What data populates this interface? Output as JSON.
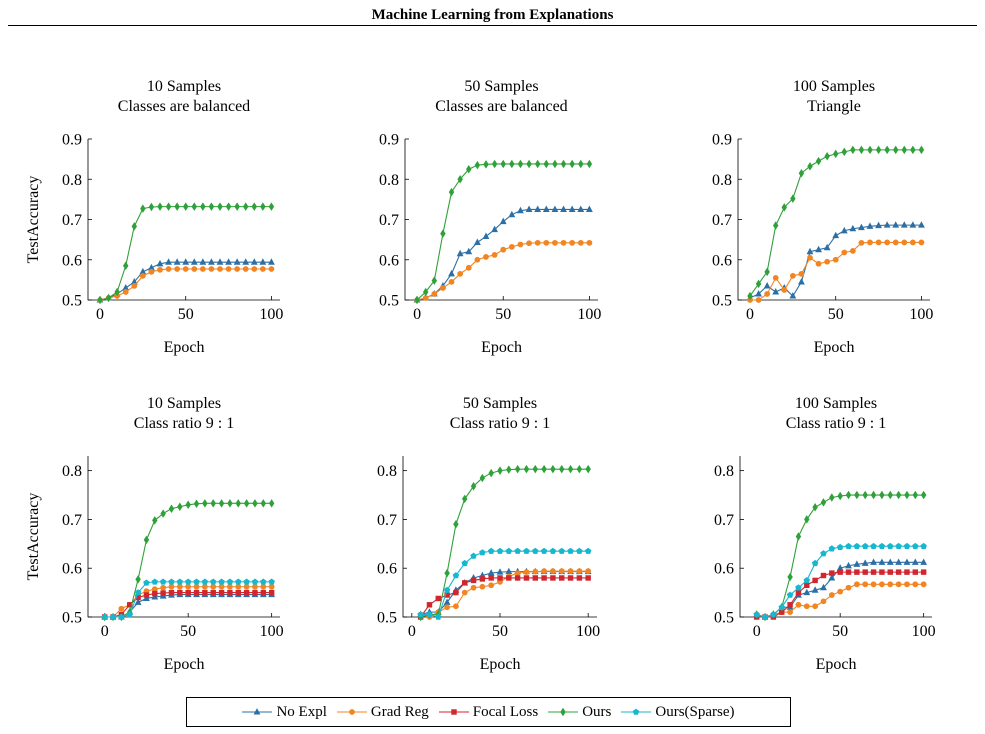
{
  "header": {
    "title": "Machine Learning from Explanations"
  },
  "legend": {
    "items": [
      {
        "label": "No Expl",
        "color": "#2c6fa6",
        "marker": "triangle"
      },
      {
        "label": "Grad Reg",
        "color": "#f28522",
        "marker": "circle"
      },
      {
        "label": "Focal Loss",
        "color": "#d1262e",
        "marker": "square"
      },
      {
        "label": "Ours",
        "color": "#2fa13a",
        "marker": "diamond"
      },
      {
        "label": "Ours(Sparse)",
        "color": "#17b7cf",
        "marker": "pentagon"
      }
    ]
  },
  "chart_data": [
    {
      "type": "line",
      "title": [
        "10 Samples",
        "Classes are balanced"
      ],
      "xlabel": "Epoch",
      "ylabel": "TestAccuracy",
      "xlim": [
        -7,
        105
      ],
      "ylim": [
        0.5,
        0.9
      ],
      "xticks": [
        0,
        50,
        100
      ],
      "yticks": [
        0.5,
        0.6,
        0.7,
        0.8,
        0.9
      ],
      "x": [
        0,
        5,
        10,
        15,
        20,
        25,
        30,
        35,
        40,
        45,
        50,
        55,
        60,
        65,
        70,
        75,
        80,
        85,
        90,
        95,
        100
      ],
      "series": [
        {
          "name": "No Expl",
          "values": [
            0.5,
            0.505,
            0.515,
            0.53,
            0.545,
            0.57,
            0.58,
            0.59,
            0.594,
            0.594,
            0.594,
            0.594,
            0.594,
            0.594,
            0.594,
            0.594,
            0.594,
            0.594,
            0.594,
            0.594,
            0.594
          ]
        },
        {
          "name": "Grad Reg",
          "values": [
            0.5,
            0.505,
            0.51,
            0.52,
            0.535,
            0.56,
            0.57,
            0.575,
            0.577,
            0.577,
            0.577,
            0.577,
            0.577,
            0.577,
            0.577,
            0.577,
            0.577,
            0.577,
            0.577,
            0.577,
            0.577
          ]
        },
        {
          "name": "Ours",
          "values": [
            0.5,
            0.505,
            0.52,
            0.585,
            0.683,
            0.727,
            0.731,
            0.732,
            0.732,
            0.732,
            0.732,
            0.732,
            0.732,
            0.732,
            0.732,
            0.732,
            0.732,
            0.732,
            0.732,
            0.732,
            0.732
          ]
        }
      ]
    },
    {
      "type": "line",
      "title": [
        "50 Samples",
        "Classes are balanced"
      ],
      "xlabel": "Epoch",
      "ylabel": "",
      "xlim": [
        -7,
        105
      ],
      "ylim": [
        0.5,
        0.9
      ],
      "xticks": [
        0,
        50,
        100
      ],
      "yticks": [
        0.5,
        0.6,
        0.7,
        0.8,
        0.9
      ],
      "x": [
        0,
        5,
        10,
        15,
        20,
        25,
        30,
        35,
        40,
        45,
        50,
        55,
        60,
        65,
        70,
        75,
        80,
        85,
        90,
        95,
        100
      ],
      "series": [
        {
          "name": "No Expl",
          "values": [
            0.5,
            0.505,
            0.515,
            0.535,
            0.565,
            0.615,
            0.62,
            0.643,
            0.658,
            0.675,
            0.695,
            0.712,
            0.722,
            0.725,
            0.725,
            0.725,
            0.725,
            0.725,
            0.725,
            0.725,
            0.725
          ]
        },
        {
          "name": "Grad Reg",
          "values": [
            0.5,
            0.505,
            0.515,
            0.53,
            0.545,
            0.565,
            0.58,
            0.6,
            0.607,
            0.612,
            0.625,
            0.632,
            0.638,
            0.641,
            0.642,
            0.642,
            0.642,
            0.642,
            0.642,
            0.642,
            0.642
          ]
        },
        {
          "name": "Ours",
          "values": [
            0.5,
            0.52,
            0.548,
            0.665,
            0.768,
            0.8,
            0.825,
            0.835,
            0.837,
            0.838,
            0.838,
            0.838,
            0.838,
            0.838,
            0.838,
            0.838,
            0.838,
            0.838,
            0.838,
            0.838,
            0.838
          ]
        }
      ]
    },
    {
      "type": "line",
      "title": [
        "100 Samples",
        "Triangle"
      ],
      "xlabel": "Epoch",
      "ylabel": "",
      "xlim": [
        -7,
        105
      ],
      "ylim": [
        0.5,
        0.9
      ],
      "xticks": [
        0,
        50,
        100
      ],
      "yticks": [
        0.5,
        0.6,
        0.7,
        0.8,
        0.9
      ],
      "x": [
        0,
        5,
        10,
        15,
        20,
        25,
        30,
        35,
        40,
        45,
        50,
        55,
        60,
        65,
        70,
        75,
        80,
        85,
        90,
        95,
        100
      ],
      "series": [
        {
          "name": "No Expl",
          "values": [
            0.505,
            0.515,
            0.535,
            0.52,
            0.53,
            0.51,
            0.545,
            0.62,
            0.625,
            0.63,
            0.66,
            0.672,
            0.677,
            0.68,
            0.683,
            0.685,
            0.686,
            0.686,
            0.686,
            0.686,
            0.686
          ]
        },
        {
          "name": "Grad Reg",
          "values": [
            0.5,
            0.5,
            0.515,
            0.555,
            0.525,
            0.56,
            0.565,
            0.605,
            0.59,
            0.595,
            0.6,
            0.618,
            0.622,
            0.642,
            0.643,
            0.643,
            0.643,
            0.643,
            0.643,
            0.643,
            0.643
          ]
        },
        {
          "name": "Ours",
          "values": [
            0.51,
            0.54,
            0.57,
            0.685,
            0.73,
            0.752,
            0.815,
            0.832,
            0.845,
            0.857,
            0.863,
            0.868,
            0.873,
            0.873,
            0.873,
            0.873,
            0.873,
            0.873,
            0.873,
            0.873,
            0.873
          ]
        }
      ]
    },
    {
      "type": "line",
      "title": [
        "10 Samples",
        "Class ratio 9 : 1"
      ],
      "xlabel": "Epoch",
      "ylabel": "TestAccuracy",
      "xlim": [
        -10,
        105
      ],
      "ylim": [
        0.5,
        0.83
      ],
      "xticks": [
        0,
        50,
        100
      ],
      "yticks": [
        0.5,
        0.6,
        0.7,
        0.8
      ],
      "x": [
        0,
        5,
        10,
        15,
        20,
        25,
        30,
        35,
        40,
        45,
        50,
        55,
        60,
        65,
        70,
        75,
        80,
        85,
        90,
        95,
        100
      ],
      "series": [
        {
          "name": "No Expl",
          "values": [
            0.5,
            0.5,
            0.5,
            0.51,
            0.53,
            0.538,
            0.541,
            0.543,
            0.545,
            0.546,
            0.546,
            0.546,
            0.546,
            0.546,
            0.546,
            0.546,
            0.546,
            0.546,
            0.546,
            0.546,
            0.546
          ]
        },
        {
          "name": "Grad Reg",
          "values": [
            0.5,
            0.5,
            0.517,
            0.525,
            0.545,
            0.553,
            0.557,
            0.56,
            0.562,
            0.562,
            0.562,
            0.562,
            0.562,
            0.562,
            0.562,
            0.562,
            0.562,
            0.562,
            0.562,
            0.562,
            0.562
          ]
        },
        {
          "name": "Focal Loss",
          "values": [
            0.5,
            0.5,
            0.505,
            0.525,
            0.54,
            0.545,
            0.548,
            0.549,
            0.55,
            0.55,
            0.55,
            0.55,
            0.55,
            0.55,
            0.55,
            0.55,
            0.55,
            0.55,
            0.55,
            0.55,
            0.55
          ]
        },
        {
          "name": "Ours",
          "values": [
            0.5,
            0.5,
            0.5,
            0.51,
            0.577,
            0.658,
            0.698,
            0.712,
            0.722,
            0.726,
            0.73,
            0.732,
            0.733,
            0.733,
            0.733,
            0.733,
            0.733,
            0.733,
            0.733,
            0.733,
            0.733
          ]
        },
        {
          "name": "Ours(Sparse)",
          "values": [
            0.5,
            0.5,
            0.5,
            0.505,
            0.55,
            0.57,
            0.572,
            0.572,
            0.572,
            0.572,
            0.572,
            0.572,
            0.572,
            0.572,
            0.572,
            0.572,
            0.572,
            0.572,
            0.572,
            0.572,
            0.572
          ]
        }
      ]
    },
    {
      "type": "line",
      "title": [
        "50 Samples",
        "Class ratio 9 : 1"
      ],
      "xlabel": "Epoch",
      "ylabel": "",
      "xlim": [
        -5,
        105
      ],
      "ylim": [
        0.5,
        0.83
      ],
      "xticks": [
        0,
        50,
        100
      ],
      "yticks": [
        0.5,
        0.6,
        0.7,
        0.8
      ],
      "x": [
        5,
        10,
        15,
        20,
        25,
        30,
        35,
        40,
        45,
        50,
        55,
        60,
        65,
        70,
        75,
        80,
        85,
        90,
        95,
        100
      ],
      "series": [
        {
          "name": "No Expl",
          "values": [
            0.505,
            0.51,
            0.51,
            0.53,
            0.555,
            0.57,
            0.58,
            0.585,
            0.59,
            0.592,
            0.593,
            0.593,
            0.593,
            0.593,
            0.593,
            0.593,
            0.593,
            0.593,
            0.593,
            0.593
          ]
        },
        {
          "name": "Grad Reg",
          "values": [
            0.505,
            0.5,
            0.51,
            0.52,
            0.522,
            0.55,
            0.56,
            0.562,
            0.565,
            0.572,
            0.583,
            0.59,
            0.592,
            0.593,
            0.594,
            0.594,
            0.594,
            0.594,
            0.594,
            0.594
          ]
        },
        {
          "name": "Focal Loss",
          "values": [
            0.5,
            0.525,
            0.538,
            0.545,
            0.55,
            0.57,
            0.575,
            0.578,
            0.58,
            0.58,
            0.58,
            0.58,
            0.58,
            0.58,
            0.58,
            0.58,
            0.58,
            0.58,
            0.58,
            0.58
          ]
        },
        {
          "name": "Ours",
          "values": [
            0.5,
            0.505,
            0.505,
            0.59,
            0.69,
            0.742,
            0.768,
            0.785,
            0.795,
            0.8,
            0.802,
            0.803,
            0.803,
            0.803,
            0.803,
            0.803,
            0.803,
            0.803,
            0.803,
            0.803
          ]
        },
        {
          "name": "Ours(Sparse)",
          "values": [
            0.505,
            0.505,
            0.5,
            0.555,
            0.585,
            0.61,
            0.625,
            0.632,
            0.635,
            0.635,
            0.635,
            0.635,
            0.635,
            0.635,
            0.635,
            0.635,
            0.635,
            0.635,
            0.635,
            0.635
          ]
        }
      ]
    },
    {
      "type": "line",
      "title": [
        "100 Samples",
        "Class ratio 9 : 1"
      ],
      "xlabel": "Epoch",
      "ylabel": "",
      "xlim": [
        -10,
        105
      ],
      "ylim": [
        0.5,
        0.83
      ],
      "xticks": [
        0,
        50,
        100
      ],
      "yticks": [
        0.5,
        0.6,
        0.7,
        0.8
      ],
      "x": [
        0,
        5,
        10,
        15,
        20,
        25,
        30,
        35,
        40,
        45,
        50,
        55,
        60,
        65,
        70,
        75,
        80,
        85,
        90,
        95,
        100
      ],
      "series": [
        {
          "name": "No Expl",
          "values": [
            0.505,
            0.5,
            0.505,
            0.52,
            0.52,
            0.545,
            0.55,
            0.555,
            0.56,
            0.58,
            0.6,
            0.605,
            0.608,
            0.61,
            0.612,
            0.612,
            0.612,
            0.612,
            0.612,
            0.612,
            0.612
          ]
        },
        {
          "name": "Grad Reg",
          "values": [
            0.505,
            0.5,
            0.505,
            0.51,
            0.51,
            0.525,
            0.522,
            0.522,
            0.532,
            0.545,
            0.552,
            0.56,
            0.567,
            0.567,
            0.567,
            0.567,
            0.567,
            0.567,
            0.567,
            0.567,
            0.567
          ]
        },
        {
          "name": "Focal Loss",
          "values": [
            0.5,
            0.5,
            0.5,
            0.51,
            0.525,
            0.55,
            0.565,
            0.575,
            0.585,
            0.59,
            0.592,
            0.592,
            0.592,
            0.592,
            0.592,
            0.592,
            0.592,
            0.592,
            0.592,
            0.592,
            0.592
          ]
        },
        {
          "name": "Ours",
          "values": [
            0.505,
            0.5,
            0.505,
            0.52,
            0.582,
            0.665,
            0.7,
            0.725,
            0.735,
            0.745,
            0.748,
            0.75,
            0.75,
            0.75,
            0.75,
            0.75,
            0.75,
            0.75,
            0.75,
            0.75,
            0.75
          ]
        },
        {
          "name": "Ours(Sparse)",
          "values": [
            0.505,
            0.5,
            0.505,
            0.52,
            0.545,
            0.56,
            0.575,
            0.61,
            0.63,
            0.64,
            0.643,
            0.645,
            0.645,
            0.645,
            0.645,
            0.645,
            0.645,
            0.645,
            0.645,
            0.645,
            0.645
          ]
        }
      ]
    }
  ]
}
